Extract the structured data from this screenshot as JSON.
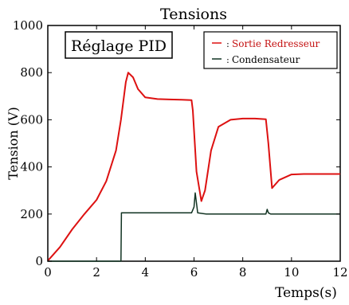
{
  "chart_data": {
    "type": "line",
    "title": "Tensions",
    "xlabel": "Temps(s)",
    "ylabel": "Tension (V)",
    "xlim": [
      0,
      12
    ],
    "ylim": [
      0,
      1000
    ],
    "x_ticks": [
      "0",
      "2",
      "4",
      "6",
      "8",
      "10",
      "12"
    ],
    "y_ticks": [
      "0",
      "200",
      "400",
      "600",
      "800",
      "1000"
    ],
    "grid": false,
    "annotation": "Réglage PID",
    "legend": {
      "position": "top-right",
      "entries": [
        "Sortie Redresseur",
        "Condensateur"
      ]
    },
    "series": [
      {
        "name": "Sortie Redresseur",
        "color": "#dd1111",
        "x": [
          0,
          0.5,
          1,
          1.5,
          2,
          2.4,
          2.8,
          3.0,
          3.2,
          3.3,
          3.5,
          3.7,
          4.0,
          4.5,
          5,
          5.5,
          5.9,
          5.95,
          6.1,
          6.3,
          6.45,
          6.7,
          7.0,
          7.5,
          8.0,
          8.5,
          8.95,
          9.05,
          9.2,
          9.5,
          10,
          10.5,
          11,
          11.5,
          12
        ],
        "y": [
          2,
          60,
          135,
          200,
          260,
          340,
          470,
          600,
          760,
          800,
          780,
          730,
          695,
          688,
          686,
          685,
          683,
          640,
          380,
          255,
          300,
          470,
          570,
          600,
          605,
          605,
          602,
          500,
          310,
          345,
          368,
          370,
          370,
          370,
          370
        ]
      },
      {
        "name": "Condensateur",
        "color": "#113322",
        "x": [
          0,
          2.9,
          3.0,
          3.02,
          3.1,
          4.0,
          5.0,
          5.9,
          6.0,
          6.05,
          6.15,
          6.5,
          7.0,
          8.0,
          8.95,
          9.0,
          9.05,
          9.15,
          10,
          11,
          12
        ],
        "y": [
          0,
          0,
          0,
          205,
          205,
          205,
          205,
          205,
          230,
          290,
          205,
          200,
          200,
          200,
          200,
          220,
          205,
          200,
          200,
          200,
          200
        ]
      }
    ]
  }
}
